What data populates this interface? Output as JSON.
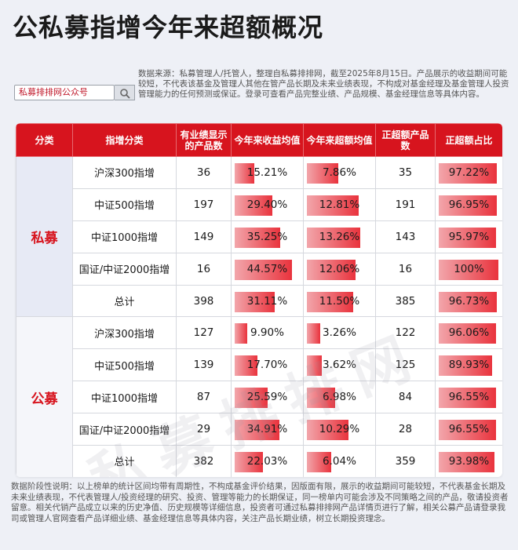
{
  "title": "公私募指增今年来超额概况",
  "search": {
    "text": "私募排排网公众号"
  },
  "source_note": "数据来源：私募管理人/托管人，整理自私募排排网，截至2025年8月15日。产品展示的收益期间可能较短，不代表该基金及管理人其他在管产品长期及未来业绩表现，不构成对基金经理及基金管理人投资管理能力的任何预测或保证。登录可查看产品完整业绩、产品规模、基金经理信息等具体内容。",
  "table": {
    "headers": [
      "分类",
      "指增分类",
      "有业绩显示的产品数",
      "今年来收益均值",
      "今年来超额均值",
      "正超额产品数",
      "正超额占比"
    ],
    "groups": [
      {
        "category": "私募",
        "rows": [
          {
            "name": "沪深300指增",
            "count": "36",
            "ret": "15.21%",
            "excess": "7.86%",
            "pos": "35",
            "ratio": "97.22%",
            "ret_v": 15.21,
            "excess_v": 7.86,
            "ratio_v": 97.22
          },
          {
            "name": "中证500指增",
            "count": "197",
            "ret": "29.40%",
            "excess": "12.81%",
            "pos": "191",
            "ratio": "96.95%",
            "ret_v": 29.4,
            "excess_v": 12.81,
            "ratio_v": 96.95
          },
          {
            "name": "中证1000指增",
            "count": "149",
            "ret": "35.25%",
            "excess": "13.26%",
            "pos": "143",
            "ratio": "95.97%",
            "ret_v": 35.25,
            "excess_v": 13.26,
            "ratio_v": 95.97
          },
          {
            "name": "国证/中证2000指增",
            "count": "16",
            "ret": "44.57%",
            "excess": "12.06%",
            "pos": "16",
            "ratio": "100%",
            "ret_v": 44.57,
            "excess_v": 12.06,
            "ratio_v": 100
          },
          {
            "name": "总计",
            "count": "398",
            "ret": "31.11%",
            "excess": "11.50%",
            "pos": "385",
            "ratio": "96.73%",
            "ret_v": 31.11,
            "excess_v": 11.5,
            "ratio_v": 96.73
          }
        ]
      },
      {
        "category": "公募",
        "rows": [
          {
            "name": "沪深300指增",
            "count": "127",
            "ret": "9.90%",
            "excess": "3.26%",
            "pos": "122",
            "ratio": "96.06%",
            "ret_v": 9.9,
            "excess_v": 3.26,
            "ratio_v": 96.06
          },
          {
            "name": "中证500指增",
            "count": "139",
            "ret": "17.70%",
            "excess": "3.62%",
            "pos": "125",
            "ratio": "89.93%",
            "ret_v": 17.7,
            "excess_v": 3.62,
            "ratio_v": 89.93
          },
          {
            "name": "中证1000指增",
            "count": "87",
            "ret": "25.59%",
            "excess": "6.98%",
            "pos": "84",
            "ratio": "96.55%",
            "ret_v": 25.59,
            "excess_v": 6.98,
            "ratio_v": 96.55
          },
          {
            "name": "国证/中证2000指增",
            "count": "29",
            "ret": "34.91%",
            "excess": "10.29%",
            "pos": "28",
            "ratio": "96.55%",
            "ret_v": 34.91,
            "excess_v": 10.29,
            "ratio_v": 96.55
          },
          {
            "name": "总计",
            "count": "382",
            "ret": "22.03%",
            "excess": "6.04%",
            "pos": "359",
            "ratio": "93.98%",
            "ret_v": 22.03,
            "excess_v": 6.04,
            "ratio_v": 93.98
          }
        ]
      }
    ]
  },
  "watermark": "私募排排网",
  "footnote": "数据阶段性说明：以上榜单的统计区间均带有周期性，不构成基金评价结果，因版面有限，展示的收益期间可能较短，不代表基金长期及未来业绩表现，不代表管理人/投资经理的研究、投资、管理等能力的长期保证，同一榜单内可能会涉及不同策略之间的产品，敬请投资者留意。相关代销产品成立以来的历史净值、历史规模等详细信息，投资者可通过私募排排网产品详情页进行了解，相关公募产品请登录我司或管理人官网查看产品详细业绩、基金经理信息等具体内容，关注产品长期业绩，树立长期投资理念。",
  "colors": {
    "accent": "#d7141e",
    "bar_start": "#f2a6ab",
    "bar_end": "#e9333d"
  },
  "icons": {
    "search": "magnifier"
  }
}
